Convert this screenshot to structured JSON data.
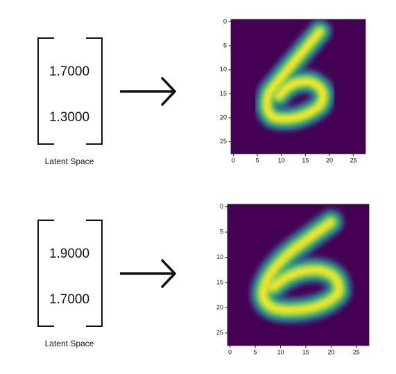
{
  "panels": [
    {
      "vector": [
        "1.7000",
        "1.3000"
      ],
      "caption": "Latent Space",
      "image": {
        "xlim": [
          -0.5,
          27.5
        ],
        "ylim": [
          27.5,
          -0.5
        ],
        "xticks": [
          0,
          5,
          10,
          15,
          20,
          25
        ],
        "yticks": [
          0,
          5,
          10,
          15,
          20,
          25
        ]
      }
    },
    {
      "vector": [
        "1.9000",
        "1.7000"
      ],
      "caption": "Latent Space",
      "image": {
        "xlim": [
          -0.5,
          27.5
        ],
        "ylim": [
          27.5,
          -0.5
        ],
        "xticks": [
          0,
          5,
          10,
          15,
          20,
          25
        ],
        "yticks": [
          0,
          5,
          10,
          15,
          20,
          25
        ]
      }
    }
  ]
}
